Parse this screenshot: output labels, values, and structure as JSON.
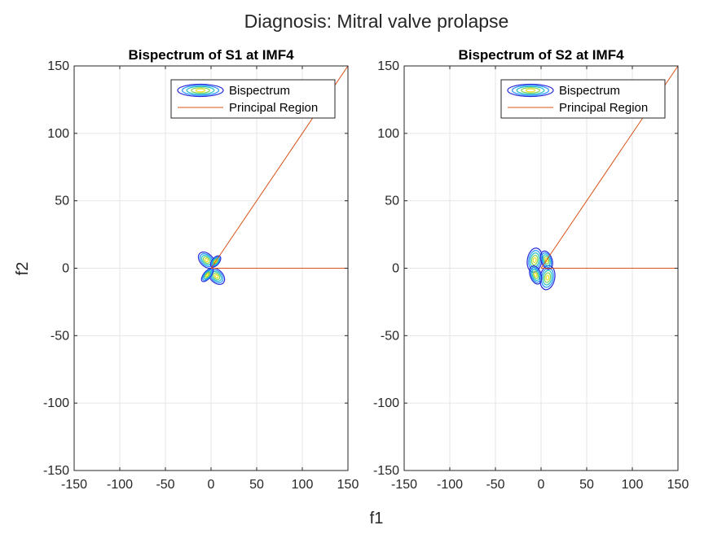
{
  "figure": {
    "suptitle": "Diagnosis: Mitral valve prolapse",
    "xlabel": "f1",
    "ylabel": "f2"
  },
  "colors": {
    "principal_region": "#D95319",
    "grid": "#e6e6e6",
    "axes": "#262626",
    "contour_levels": [
      "#2a2ad8",
      "#1e90ff",
      "#20c0c0",
      "#7fd34e",
      "#f0e020"
    ]
  },
  "legend": {
    "placement": "top-right",
    "entries": [
      "Bispectrum",
      "Principal Region"
    ]
  },
  "chart_data": [
    {
      "type": "contour",
      "title": "Bispectrum of S1 at IMF4",
      "xlim": [
        -150,
        150
      ],
      "ylim": [
        -150,
        150
      ],
      "xticks": [
        "-150",
        "-100",
        "-50",
        "0",
        "50",
        "100",
        "150"
      ],
      "yticks": [
        "-150",
        "-100",
        "-50",
        "0",
        "50",
        "100",
        "150"
      ],
      "grid": true,
      "series": [
        {
          "name": "Bispectrum",
          "kind": "contour",
          "blobs": [
            {
              "cx": -5,
              "cy": 6,
              "rx": 7,
              "ry": 7,
              "angle": -45
            },
            {
              "cx": 6,
              "cy": -6,
              "rx": 7,
              "ry": 7,
              "angle": -45
            },
            {
              "cx": -4,
              "cy": -5,
              "rx": 4,
              "ry": 6,
              "angle": 40
            },
            {
              "cx": 5,
              "cy": 5,
              "rx": 4,
              "ry": 5,
              "angle": 40
            }
          ]
        },
        {
          "name": "Principal Region",
          "kind": "line",
          "segments": [
            {
              "x": [
                0,
                150
              ],
              "y": [
                0,
                150
              ]
            },
            {
              "x": [
                0,
                150
              ],
              "y": [
                0,
                0
              ]
            }
          ]
        }
      ]
    },
    {
      "type": "contour",
      "title": "Bispectrum of S2 at IMF4",
      "xlim": [
        -150,
        150
      ],
      "ylim": [
        -150,
        150
      ],
      "xticks": [
        "-150",
        "-100",
        "-50",
        "0",
        "50",
        "100",
        "150"
      ],
      "yticks": [
        "-150",
        "-100",
        "-50",
        "0",
        "50",
        "100",
        "150"
      ],
      "grid": true,
      "series": [
        {
          "name": "Bispectrum",
          "kind": "contour",
          "blobs": [
            {
              "cx": -7,
              "cy": 6,
              "rx": 8,
              "ry": 9,
              "angle": 10
            },
            {
              "cx": 7,
              "cy": -7,
              "rx": 8,
              "ry": 9,
              "angle": 10
            },
            {
              "cx": -6,
              "cy": -5,
              "rx": 6,
              "ry": 7,
              "angle": -20
            },
            {
              "cx": 6,
              "cy": 6,
              "rx": 6,
              "ry": 7,
              "angle": -20
            }
          ]
        },
        {
          "name": "Principal Region",
          "kind": "line",
          "segments": [
            {
              "x": [
                0,
                150
              ],
              "y": [
                0,
                150
              ]
            },
            {
              "x": [
                0,
                150
              ],
              "y": [
                0,
                0
              ]
            }
          ]
        }
      ]
    }
  ]
}
